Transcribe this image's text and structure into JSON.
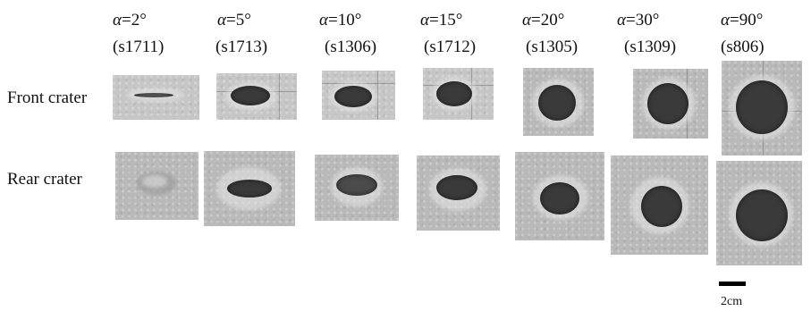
{
  "columns": [
    {
      "angle": "2",
      "code": "(s1711)"
    },
    {
      "angle": "5",
      "code": "(s1713)"
    },
    {
      "angle": "10",
      "code": "(s1306)"
    },
    {
      "angle": "15",
      "code": "(s1712)"
    },
    {
      "angle": "20",
      "code": "(s1305)"
    },
    {
      "angle": "30",
      "code": "(s1309)"
    },
    {
      "angle": "90",
      "code": "(s806)"
    }
  ],
  "symbols": {
    "alpha": "α",
    "eq": "=",
    "deg": "°"
  },
  "rows": {
    "front": "Front crater",
    "rear": "Rear crater"
  },
  "scale": {
    "label": "2cm"
  }
}
